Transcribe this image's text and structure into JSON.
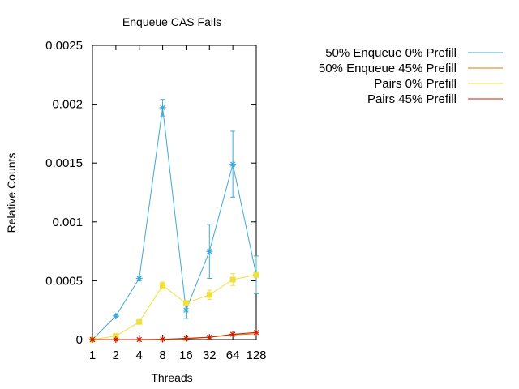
{
  "chart_data": {
    "type": "line",
    "title": "Enqueue CAS Fails",
    "xlabel": "Threads",
    "ylabel": "Relative Counts",
    "x_scale": "log2",
    "categories": [
      "1",
      "2",
      "4",
      "8",
      "16",
      "32",
      "64",
      "128"
    ],
    "x": [
      1,
      2,
      4,
      8,
      16,
      32,
      64,
      128
    ],
    "ylim": [
      0,
      0.0025
    ],
    "yticks": [
      "0",
      "0.0005",
      "0.001",
      "0.0015",
      "0.002",
      "0.0025"
    ],
    "ytick_values": [
      0,
      0.0005,
      0.001,
      0.0015,
      0.002,
      0.0025
    ],
    "grid": false,
    "legend_position": "top-right",
    "series": [
      {
        "name": "50% Enqueue 0% Prefill",
        "color": "#3fa9d6",
        "marker": "star",
        "values": [
          0,
          0.0002,
          0.00052,
          0.00197,
          0.00025,
          0.00075,
          0.00149,
          0.00055
        ],
        "errors": [
          0,
          1e-05,
          2e-05,
          7e-05,
          7e-05,
          0.00023,
          0.00028,
          0.00016
        ]
      },
      {
        "name": "50% Enqueue 45% Prefill",
        "color": "#e07b00",
        "marker": "none",
        "values": [
          0,
          0,
          0,
          0,
          5e-06,
          2e-05,
          4e-05,
          5e-05
        ],
        "errors": [
          0,
          0,
          0,
          0,
          0,
          0,
          0,
          0
        ]
      },
      {
        "name": "Pairs 0% Prefill",
        "color": "#efe13a",
        "marker": "square",
        "values": [
          0,
          3e-05,
          0.00015,
          0.00046,
          0.00031,
          0.00038,
          0.00051,
          0.00055
        ],
        "errors": [
          0,
          1e-05,
          1e-05,
          3e-05,
          2e-05,
          4e-05,
          5e-05,
          2e-05
        ]
      },
      {
        "name": "Pairs 45% Prefill",
        "color": "#cc1f00",
        "marker": "star",
        "values": [
          0,
          0,
          0,
          3e-06,
          1e-05,
          2e-05,
          4.5e-05,
          6e-05
        ],
        "errors": [
          0,
          0,
          0,
          0,
          0,
          0,
          0,
          0
        ]
      }
    ]
  }
}
